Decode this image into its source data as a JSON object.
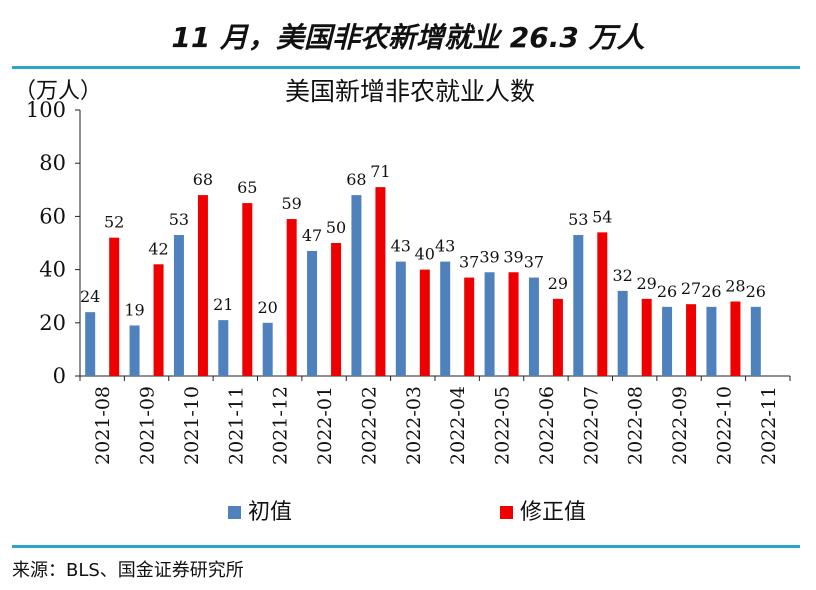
{
  "headline": "11 月，美国非农新增就业 26.3 万人",
  "source": "来源：BLS、国金证券研究所",
  "chart_data": {
    "type": "bar",
    "title": "美国新增非农就业人数",
    "ylabel": "（万人）",
    "xlabel": "",
    "ylim": [
      0,
      100
    ],
    "yticks": [
      0,
      20,
      40,
      60,
      80,
      100
    ],
    "grid": false,
    "legend_position": "bottom",
    "categories": [
      "2021-08",
      "2021-09",
      "2021-10",
      "2021-11",
      "2021-12",
      "2022-01",
      "2022-02",
      "2022-03",
      "2022-04",
      "2022-05",
      "2022-06",
      "2022-07",
      "2022-08",
      "2022-09",
      "2022-10",
      "2022-11"
    ],
    "series": [
      {
        "name": "初值",
        "color": "#4f81bd",
        "values": [
          24,
          19,
          53,
          21,
          20,
          47,
          68,
          43,
          43,
          39,
          37,
          53,
          32,
          26,
          26,
          26
        ]
      },
      {
        "name": "修正值",
        "color": "#ee0000",
        "values": [
          52,
          42,
          68,
          65,
          59,
          50,
          71,
          40,
          37,
          39,
          29,
          54,
          29,
          27,
          28,
          null
        ]
      }
    ]
  }
}
